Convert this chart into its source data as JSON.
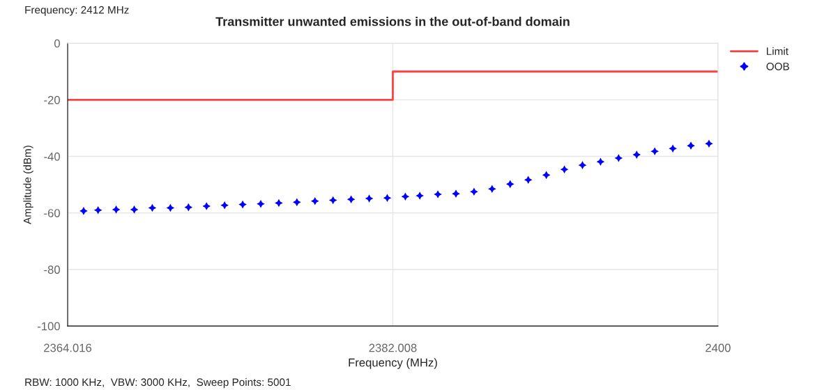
{
  "chart_data": {
    "type": "scatter",
    "title": "Transmitter unwanted emissions in the out-of-band domain",
    "xlabel": "Frequency (MHz)",
    "ylabel": "Amplitude (dBm)",
    "annotations": [
      "Frequency: 2412 MHz",
      "RBW: 1000 KHz,  VBW: 3000 KHz,  Sweep Points: 5001"
    ],
    "xlim": [
      2364.016,
      2400
    ],
    "xticks": [
      2364.016,
      2382.008,
      2400
    ],
    "ylim": [
      -100,
      0
    ],
    "yticks": [
      -100,
      -80,
      -60,
      -40,
      -20,
      0
    ],
    "grid": true,
    "legend": "top right",
    "series": [
      {
        "name": "Limit",
        "type": "step",
        "color": "#ff4040",
        "marker": "none",
        "x": [
          2364.016,
          2382.008,
          2400
        ],
        "values": [
          -20,
          -10,
          -10
        ]
      },
      {
        "name": "OOB",
        "color": "#0000ff",
        "marker": "star",
        "x": [
          2364.9,
          2365.7,
          2366.7,
          2367.7,
          2368.7,
          2369.7,
          2370.7,
          2371.7,
          2372.7,
          2373.7,
          2374.7,
          2375.7,
          2376.7,
          2377.7,
          2378.7,
          2379.7,
          2380.7,
          2381.7,
          2382.7,
          2383.5,
          2384.5,
          2385.5,
          2386.5,
          2387.5,
          2388.5,
          2389.5,
          2390.5,
          2391.5,
          2392.5,
          2393.5,
          2394.5,
          2395.5,
          2396.5,
          2397.5,
          2398.5,
          2399.5
        ],
        "values": [
          -59.3,
          -59.0,
          -58.8,
          -58.8,
          -58.2,
          -58.2,
          -58.0,
          -57.6,
          -57.3,
          -57.0,
          -56.8,
          -56.5,
          -56.2,
          -55.8,
          -55.5,
          -55.2,
          -54.9,
          -54.7,
          -54.2,
          -53.9,
          -53.4,
          -53.2,
          -52.5,
          -51.5,
          -49.8,
          -48.3,
          -46.6,
          -44.6,
          -43.1,
          -41.9,
          -40.6,
          -39.4,
          -38.2,
          -37.2,
          -36.2,
          -35.5
        ]
      }
    ]
  }
}
